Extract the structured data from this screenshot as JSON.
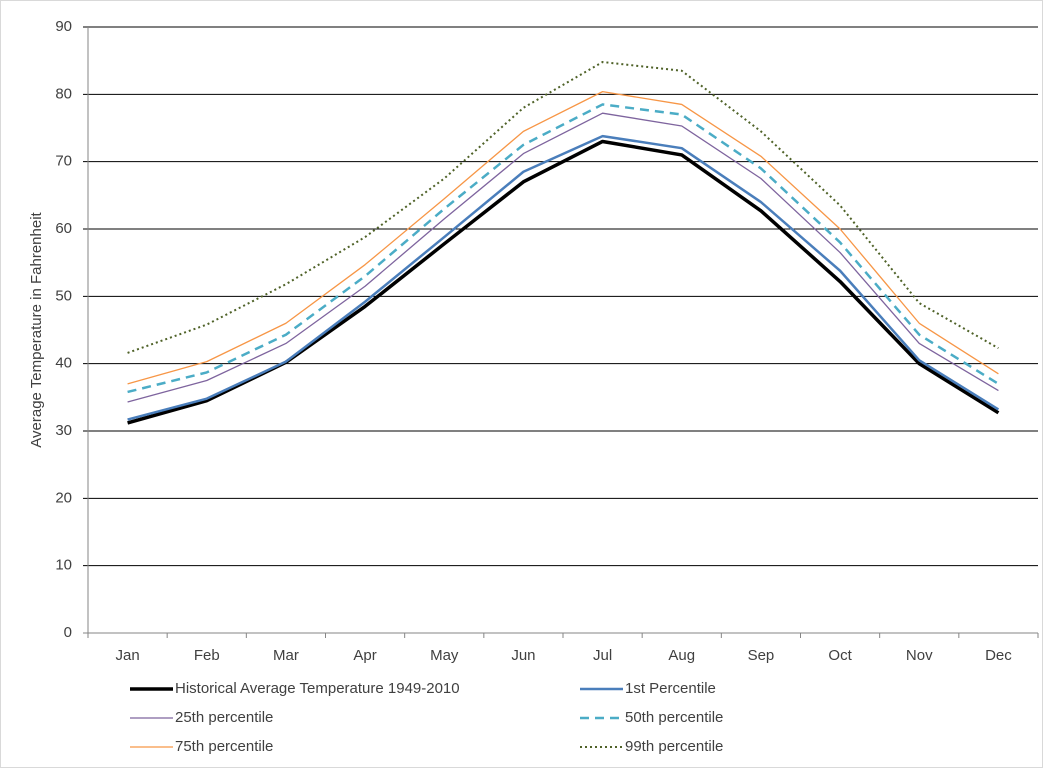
{
  "chart_data": {
    "type": "line",
    "y_label": "Average Temperature in Fahrenheit",
    "categories": [
      "Jan",
      "Feb",
      "Mar",
      "Apr",
      "May",
      "Jun",
      "Jul",
      "Aug",
      "Sep",
      "Oct",
      "Nov",
      "Dec"
    ],
    "ylim": [
      0,
      90
    ],
    "yticks": [
      0,
      10,
      20,
      30,
      40,
      50,
      60,
      70,
      80,
      90
    ],
    "grid": true,
    "legend": "bottom",
    "series": [
      {
        "name": "Historical Average Temperature 1949-2010",
        "color": "#000000",
        "dash": "solid",
        "width": 3.5,
        "values": [
          31.2,
          34.5,
          40.2,
          48.5,
          57.8,
          67,
          73,
          71,
          62.7,
          52.2,
          40,
          32.7
        ]
      },
      {
        "name": "1st Percentile",
        "color": "#4a7ebb",
        "dash": "solid",
        "width": 2.5,
        "values": [
          31.7,
          34.8,
          40.3,
          49.2,
          58.8,
          68.5,
          73.8,
          72,
          64,
          53.8,
          40.5,
          33.2
        ]
      },
      {
        "name": "25th percentile",
        "color": "#7e649e",
        "dash": "solid",
        "width": 1.3,
        "values": [
          34.3,
          37.5,
          43,
          51.5,
          61.5,
          71.2,
          77.2,
          75.3,
          67.5,
          56.5,
          43,
          36
        ]
      },
      {
        "name": "50th percentile",
        "color": "#4bacc6",
        "dash": "dashed",
        "width": 2.5,
        "values": [
          35.8,
          38.7,
          44.3,
          53,
          63,
          72.5,
          78.5,
          77,
          69,
          58,
          44.3,
          37
        ]
      },
      {
        "name": "75th percentile",
        "color": "#f79646",
        "dash": "solid",
        "width": 1.3,
        "values": [
          37,
          40.3,
          46,
          54.7,
          64.5,
          74.5,
          80.4,
          78.5,
          70.8,
          60,
          46,
          38.5
        ]
      },
      {
        "name": "99th percentile",
        "color": "#4f6228",
        "dash": "dotted",
        "width": 2,
        "values": [
          41.6,
          45.8,
          51.8,
          58.8,
          67.5,
          78,
          84.8,
          83.5,
          74.5,
          63.5,
          49,
          42.3
        ]
      }
    ]
  }
}
